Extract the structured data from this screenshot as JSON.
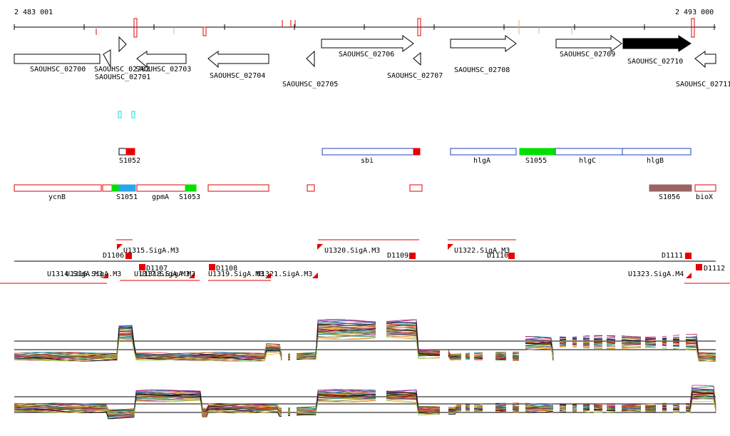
{
  "coordinates": {
    "start": "2 483 001",
    "end": "2 493 000"
  },
  "colors": {
    "gene_outline": "#000000",
    "highlight_gene": "#000000",
    "feature_red": "#e60000",
    "feature_blue": "#1f3fbf",
    "feature_green": "#00e000",
    "feature_sky": "#2aa6e8",
    "feature_brown": "#9b6460",
    "cyan": "#00e5e5"
  },
  "genes": [
    {
      "id": "SAOUHSC_02700",
      "label": "SAOUHSC_02700",
      "strand": "-",
      "highlight": false
    },
    {
      "id": "SAOUHSC_02701",
      "label": "SAOUHSC_02701",
      "strand": "-",
      "highlight": false
    },
    {
      "id": "SAOUHSC_02702",
      "label": "SAOUHSC_02702",
      "strand": "+",
      "highlight": false
    },
    {
      "id": "SAOUHSC_02703",
      "label": "SAOUHSC_02703",
      "strand": "-",
      "highlight": false
    },
    {
      "id": "SAOUHSC_02704",
      "label": "SAOUHSC_02704",
      "strand": "-",
      "highlight": false
    },
    {
      "id": "SAOUHSC_02705",
      "label": "SAOUHSC_02705",
      "strand": "-",
      "highlight": false
    },
    {
      "id": "SAOUHSC_02706",
      "label": "SAOUHSC_02706",
      "strand": "+",
      "highlight": false
    },
    {
      "id": "SAOUHSC_02707",
      "label": "SAOUHSC_02707",
      "strand": "-",
      "highlight": false
    },
    {
      "id": "SAOUHSC_02708",
      "label": "SAOUHSC_02708",
      "strand": "+",
      "highlight": false
    },
    {
      "id": "SAOUHSC_02709",
      "label": "SAOUHSC_02709",
      "strand": "+",
      "highlight": false
    },
    {
      "id": "SAOUHSC_02710",
      "label": "SAOUHSC_02710",
      "strand": "+",
      "highlight": true
    },
    {
      "id": "SAOUHSC_02711",
      "label": "SAOUHSC_02711",
      "strand": "-",
      "highlight": false
    }
  ],
  "features_row1": [
    {
      "label": "S1052"
    },
    {
      "label": "sbi"
    },
    {
      "label": "hlgA"
    },
    {
      "label": "S1055"
    },
    {
      "label": "hlgC"
    },
    {
      "label": "hlgB"
    }
  ],
  "features_row2": [
    {
      "label": "ycnB"
    },
    {
      "label": "S1051"
    },
    {
      "label": "gpmA"
    },
    {
      "label": "S1053"
    },
    {
      "label": "S1056"
    },
    {
      "label": "bioX"
    }
  ],
  "promoters": [
    {
      "label": "U1315.SigA.M3"
    },
    {
      "label": "U1320.SigA.M3"
    },
    {
      "label": "U1322.SigA.M3"
    },
    {
      "label": "U1314.SigA.M3"
    },
    {
      "label": "U1316.SigA.M3"
    },
    {
      "label": "U1317.SigA.M3"
    },
    {
      "label": "U1318.SigA.M3"
    },
    {
      "label": "U1319.SigA.M3"
    },
    {
      "label": "U1321.SigA.M3"
    },
    {
      "label": "U1323.SigA.M4"
    }
  ],
  "terminators": [
    {
      "label": "D1106"
    },
    {
      "label": "D1107"
    },
    {
      "label": "D1108"
    },
    {
      "label": "D1109"
    },
    {
      "label": "D1110"
    },
    {
      "label": "D1111"
    },
    {
      "label": "D1112"
    }
  ]
}
